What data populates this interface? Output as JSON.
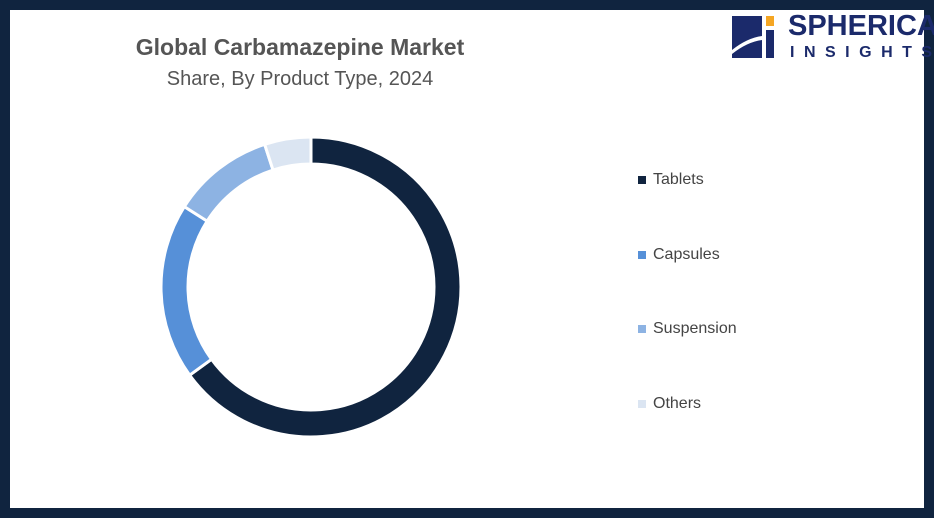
{
  "logo": {
    "line1": "SPHERICAL",
    "line2": "INSIGHTS"
  },
  "chart_data": {
    "type": "pie",
    "style": "donut",
    "title": "Global Carbamazepine Market",
    "subtitle": "Share, By Product Type, 2024",
    "categories": [
      "Tablets",
      "Capsules",
      "Suspension",
      "Others"
    ],
    "values": [
      65,
      19,
      11,
      5
    ],
    "colors": [
      "#10243f",
      "#5690d8",
      "#8db3e3",
      "#dbe5f2"
    ],
    "legend_position": "right"
  }
}
